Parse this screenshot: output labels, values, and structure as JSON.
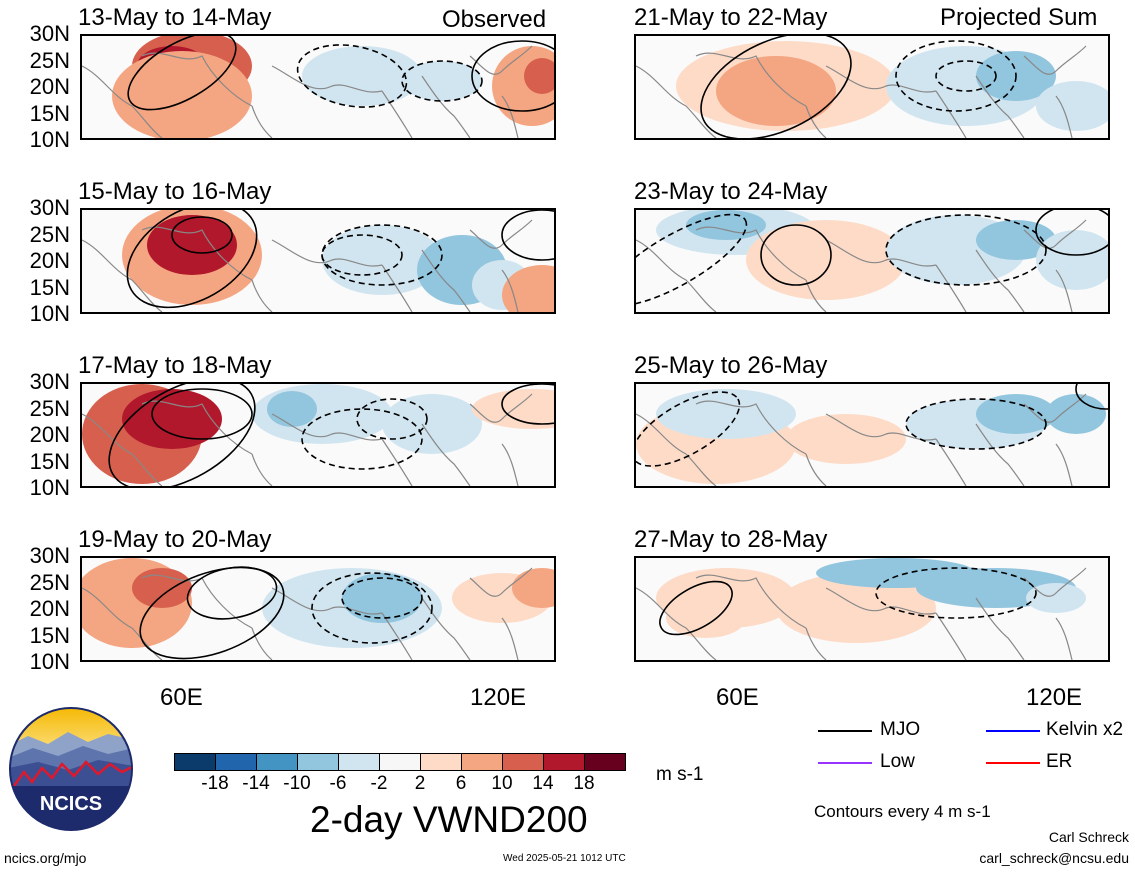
{
  "left_header": "Observed",
  "right_header": "Projected Sum",
  "panels": [
    {
      "title": "13-May to 14-May"
    },
    {
      "title": "15-May to 16-May"
    },
    {
      "title": "17-May to 18-May"
    },
    {
      "title": "19-May to 20-May"
    },
    {
      "title": "21-May to 22-May"
    },
    {
      "title": "23-May to 24-May"
    },
    {
      "title": "25-May to 26-May"
    },
    {
      "title": "27-May to 28-May"
    }
  ],
  "y_ticks": [
    "30N",
    "25N",
    "20N",
    "15N",
    "10N"
  ],
  "x_ticks": [
    "60E",
    "120E"
  ],
  "colorbar": {
    "labels": [
      "-18",
      "-14",
      "-10",
      "-6",
      "-2",
      "2",
      "6",
      "10",
      "14",
      "18"
    ],
    "colors": [
      "#0a3b6b",
      "#2166ac",
      "#4393c3",
      "#92c5de",
      "#d1e5f0",
      "#f7f7f7",
      "#fddbc7",
      "#f4a582",
      "#d6604d",
      "#b2182b",
      "#67001f"
    ],
    "units": "m s-1"
  },
  "title": "2-day VWND200",
  "legend": {
    "items": [
      {
        "label": "MJO",
        "color": "#000000"
      },
      {
        "label": "Kelvin x2",
        "color": "#0000ff"
      },
      {
        "label": "Low",
        "color": "#9933ff"
      },
      {
        "label": "ER",
        "color": "#ff0000"
      }
    ],
    "contours_note": "Contours every 4 m s-1"
  },
  "logo_text": "NCICS",
  "footer": {
    "url": "ncics.org/mjo",
    "timestamp": "Wed 2025-05-21 1012 UTC",
    "author": "Carl Schreck",
    "email": "carl_schreck@ncsu.edu"
  }
}
